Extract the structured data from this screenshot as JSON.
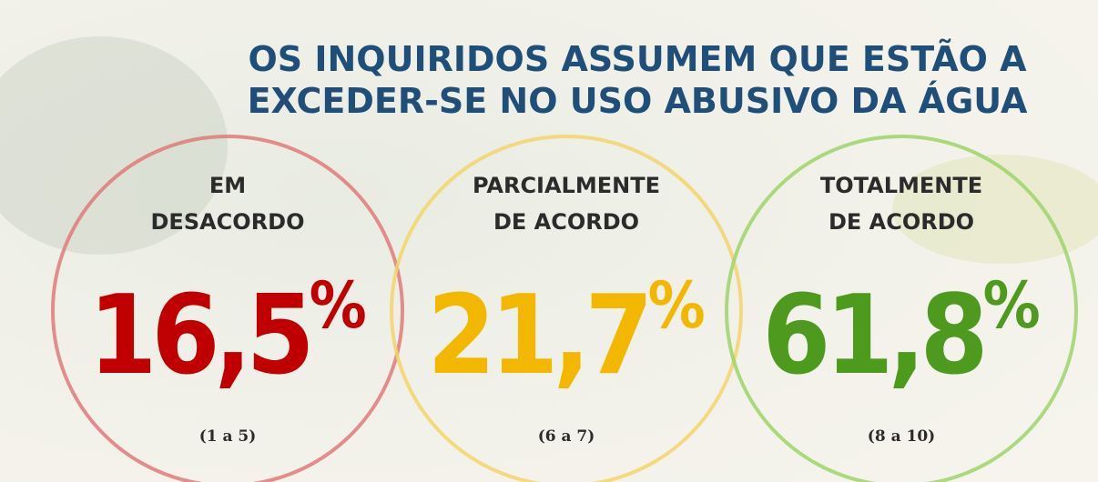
{
  "title": {
    "lines": [
      "OS INQUIRIDOS ASSUMEM QUE ESTÃO A",
      "EXCEDER-SE NO USO ABUSIVO DA ÁGUA"
    ]
  },
  "groups": [
    {
      "label": [
        "EM",
        "DESACORDO"
      ],
      "value": "16,5",
      "suffix": "%",
      "range": "(1 a 5)",
      "color": "#c00000",
      "ring": "#e07a7a"
    },
    {
      "label": [
        "PARCIALMENTE",
        "DE ACORDO"
      ],
      "value": "21,7",
      "suffix": "%",
      "range": "(6 a 7)",
      "color": "#f2b800",
      "ring": "#f3d56a"
    },
    {
      "label": [
        "TOTALMENTE",
        "DE ACORDO"
      ],
      "value": "61,8",
      "suffix": "%",
      "range": "(8 a 10)",
      "color": "#4e9a1e",
      "ring": "#9fd46a"
    }
  ]
}
